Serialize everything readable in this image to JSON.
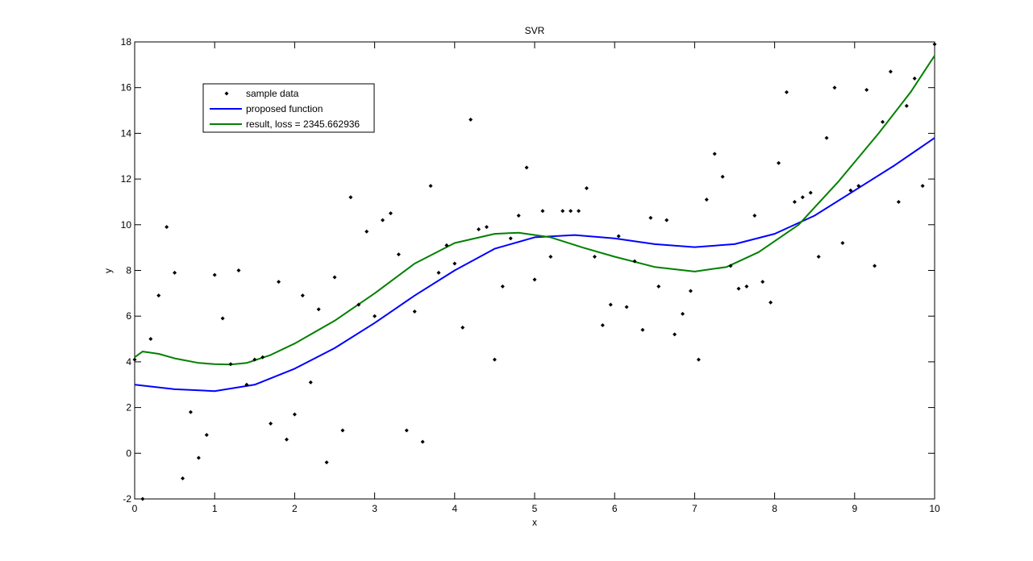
{
  "chart_data": {
    "type": "line",
    "title": "SVR",
    "xlabel": "x",
    "ylabel": "y",
    "xlim": [
      0,
      10
    ],
    "ylim": [
      -2,
      18
    ],
    "xticks": [
      0,
      1,
      2,
      3,
      4,
      5,
      6,
      7,
      8,
      9,
      10
    ],
    "yticks": [
      -2,
      0,
      2,
      4,
      6,
      8,
      10,
      12,
      14,
      16,
      18
    ],
    "legend": {
      "placement": "top-left",
      "entries": [
        {
          "label": "sample data",
          "style": "points",
          "color": "#000000"
        },
        {
          "label": "proposed function",
          "style": "line",
          "color": "#0000ff"
        },
        {
          "label": "result, loss = 2345.662936",
          "style": "line",
          "color": "#008000"
        }
      ]
    },
    "series": [
      {
        "name": "sample data",
        "kind": "scatter",
        "color": "#000000",
        "points": [
          [
            0.0,
            4.1
          ],
          [
            0.1,
            -2.0
          ],
          [
            0.2,
            5.0
          ],
          [
            0.3,
            6.9
          ],
          [
            0.4,
            9.9
          ],
          [
            0.5,
            7.9
          ],
          [
            0.6,
            -1.1
          ],
          [
            0.7,
            1.8
          ],
          [
            0.8,
            -0.2
          ],
          [
            0.9,
            0.8
          ],
          [
            1.0,
            7.8
          ],
          [
            1.1,
            5.9
          ],
          [
            1.2,
            3.9
          ],
          [
            1.3,
            8.0
          ],
          [
            1.4,
            3.0
          ],
          [
            1.5,
            4.1
          ],
          [
            1.6,
            4.2
          ],
          [
            1.7,
            1.3
          ],
          [
            1.8,
            7.5
          ],
          [
            1.9,
            0.6
          ],
          [
            2.0,
            1.7
          ],
          [
            2.1,
            6.9
          ],
          [
            2.2,
            3.1
          ],
          [
            2.3,
            6.3
          ],
          [
            2.4,
            -0.4
          ],
          [
            2.5,
            7.7
          ],
          [
            2.6,
            1.0
          ],
          [
            2.7,
            11.2
          ],
          [
            2.8,
            6.5
          ],
          [
            2.9,
            9.7
          ],
          [
            3.0,
            6.0
          ],
          [
            3.1,
            10.2
          ],
          [
            3.2,
            10.5
          ],
          [
            3.3,
            8.7
          ],
          [
            3.4,
            1.0
          ],
          [
            3.5,
            6.2
          ],
          [
            3.6,
            0.5
          ],
          [
            3.7,
            11.7
          ],
          [
            3.8,
            7.9
          ],
          [
            3.9,
            9.1
          ],
          [
            4.0,
            8.3
          ],
          [
            4.1,
            5.5
          ],
          [
            4.2,
            14.6
          ],
          [
            4.3,
            9.8
          ],
          [
            4.4,
            9.9
          ],
          [
            4.5,
            4.1
          ],
          [
            4.6,
            7.3
          ],
          [
            4.7,
            9.4
          ],
          [
            4.8,
            10.4
          ],
          [
            4.9,
            12.5
          ],
          [
            5.0,
            7.6
          ],
          [
            5.1,
            10.6
          ],
          [
            5.2,
            8.6
          ],
          [
            5.35,
            10.6
          ],
          [
            5.45,
            10.6
          ],
          [
            5.55,
            10.6
          ],
          [
            5.65,
            11.6
          ],
          [
            5.75,
            8.6
          ],
          [
            5.85,
            5.6
          ],
          [
            5.95,
            6.5
          ],
          [
            6.05,
            9.5
          ],
          [
            6.15,
            6.4
          ],
          [
            6.25,
            8.4
          ],
          [
            6.35,
            5.4
          ],
          [
            6.45,
            10.3
          ],
          [
            6.55,
            7.3
          ],
          [
            6.65,
            10.2
          ],
          [
            6.75,
            5.2
          ],
          [
            6.85,
            6.1
          ],
          [
            6.95,
            7.1
          ],
          [
            7.05,
            4.1
          ],
          [
            7.15,
            11.1
          ],
          [
            7.25,
            13.1
          ],
          [
            7.35,
            12.1
          ],
          [
            7.45,
            8.2
          ],
          [
            7.55,
            7.2
          ],
          [
            7.65,
            7.3
          ],
          [
            7.75,
            10.4
          ],
          [
            7.85,
            7.5
          ],
          [
            7.95,
            6.6
          ],
          [
            8.05,
            12.7
          ],
          [
            8.15,
            15.8
          ],
          [
            8.25,
            11.0
          ],
          [
            8.35,
            11.2
          ],
          [
            8.45,
            11.4
          ],
          [
            8.55,
            8.6
          ],
          [
            8.65,
            13.8
          ],
          [
            8.75,
            16.0
          ],
          [
            8.85,
            9.2
          ],
          [
            8.95,
            11.5
          ],
          [
            9.05,
            11.7
          ],
          [
            9.15,
            15.9
          ],
          [
            9.25,
            8.2
          ],
          [
            9.35,
            14.5
          ],
          [
            9.45,
            16.7
          ],
          [
            9.55,
            11.0
          ],
          [
            9.65,
            15.2
          ],
          [
            9.75,
            16.4
          ],
          [
            9.85,
            11.7
          ],
          [
            10.0,
            17.9
          ]
        ]
      },
      {
        "name": "proposed function",
        "kind": "line",
        "color": "#0000ff",
        "points": [
          [
            0.0,
            3.0
          ],
          [
            0.5,
            2.8
          ],
          [
            1.0,
            2.72
          ],
          [
            1.5,
            3.0
          ],
          [
            2.0,
            3.7
          ],
          [
            2.5,
            4.6
          ],
          [
            3.0,
            5.7
          ],
          [
            3.5,
            6.9
          ],
          [
            4.0,
            8.0
          ],
          [
            4.5,
            8.95
          ],
          [
            5.0,
            9.45
          ],
          [
            5.5,
            9.55
          ],
          [
            6.0,
            9.4
          ],
          [
            6.5,
            9.15
          ],
          [
            7.0,
            9.02
          ],
          [
            7.5,
            9.15
          ],
          [
            8.0,
            9.6
          ],
          [
            8.5,
            10.4
          ],
          [
            9.0,
            11.5
          ],
          [
            9.5,
            12.6
          ],
          [
            10.0,
            13.8
          ]
        ]
      },
      {
        "name": "result, loss = 2345.662936",
        "kind": "line",
        "color": "#008000",
        "points": [
          [
            0.0,
            4.2
          ],
          [
            0.1,
            4.45
          ],
          [
            0.3,
            4.35
          ],
          [
            0.5,
            4.15
          ],
          [
            0.8,
            3.95
          ],
          [
            1.0,
            3.9
          ],
          [
            1.2,
            3.88
          ],
          [
            1.4,
            3.95
          ],
          [
            1.7,
            4.3
          ],
          [
            2.0,
            4.8
          ],
          [
            2.5,
            5.8
          ],
          [
            3.0,
            7.0
          ],
          [
            3.5,
            8.3
          ],
          [
            4.0,
            9.2
          ],
          [
            4.5,
            9.6
          ],
          [
            4.8,
            9.65
          ],
          [
            5.2,
            9.45
          ],
          [
            5.6,
            9.0
          ],
          [
            6.0,
            8.6
          ],
          [
            6.5,
            8.15
          ],
          [
            7.0,
            7.95
          ],
          [
            7.4,
            8.15
          ],
          [
            7.8,
            8.8
          ],
          [
            8.3,
            10.0
          ],
          [
            8.8,
            11.9
          ],
          [
            9.3,
            14.0
          ],
          [
            9.7,
            15.8
          ],
          [
            10.0,
            17.4
          ]
        ]
      }
    ]
  }
}
